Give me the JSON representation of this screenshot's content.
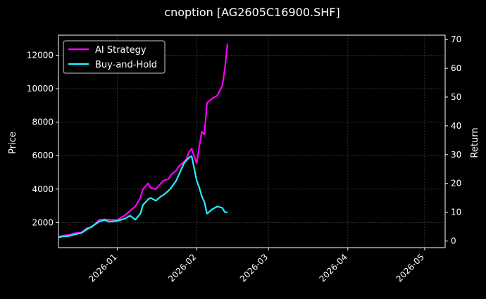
{
  "chart_data": {
    "type": "line",
    "title": "cnoption [AG2605C16900.SHF]",
    "ylabel_left": "Price",
    "ylabel_right": "Return",
    "xlim": [
      "2025-12-09",
      "2026-05-09"
    ],
    "ylim_left": [
      500,
      13200
    ],
    "ylim_right": [
      -2.3,
      71.5
    ],
    "x_ticks": [
      "2026-01-01",
      "2026-02-01",
      "2026-03-01",
      "2026-04-01",
      "2026-05-01"
    ],
    "x_tick_labels": [
      "2026-01",
      "2026-02",
      "2026-03",
      "2026-04",
      "2026-05"
    ],
    "y_ticks_left": [
      2000,
      4000,
      6000,
      8000,
      10000,
      12000
    ],
    "y_tick_labels_left": [
      "2000",
      "4000",
      "6000",
      "8000",
      "10000",
      "12000"
    ],
    "y_ticks_right": [
      0,
      10,
      20,
      30,
      40,
      50,
      60,
      70
    ],
    "y_tick_labels_right": [
      "0",
      "10",
      "20",
      "30",
      "40",
      "50",
      "60",
      "70"
    ],
    "grid": true,
    "legend_position": "top-left",
    "series": [
      {
        "name": "AI Strategy",
        "color": "#ff00ff",
        "x": [
          "2025-12-09",
          "2025-12-11",
          "2025-12-13",
          "2025-12-15",
          "2025-12-18",
          "2025-12-20",
          "2025-12-22",
          "2025-12-25",
          "2025-12-27",
          "2025-12-29",
          "2026-01-01",
          "2026-01-04",
          "2026-01-06",
          "2026-01-08",
          "2026-01-10",
          "2026-01-11",
          "2026-01-13",
          "2026-01-14",
          "2026-01-16",
          "2026-01-18",
          "2026-01-19",
          "2026-01-21",
          "2026-01-22",
          "2026-01-24",
          "2026-01-25",
          "2026-01-27",
          "2026-01-28",
          "2026-01-29",
          "2026-01-30",
          "2026-02-01",
          "2026-02-02",
          "2026-02-03",
          "2026-02-04",
          "2026-02-05",
          "2026-02-07",
          "2026-02-09",
          "2026-02-11",
          "2026-02-12",
          "2026-02-13"
        ],
        "values": [
          1.5,
          1.9,
          2.1,
          2.6,
          3.0,
          4.5,
          4.8,
          7.4,
          7.5,
          7.4,
          7.3,
          9.0,
          10.5,
          12.0,
          15.0,
          18.0,
          20.0,
          18.5,
          18.0,
          20.0,
          21.0,
          21.5,
          23.0,
          24.5,
          26.0,
          27.5,
          28.5,
          31.0,
          32.0,
          27.0,
          33.0,
          38.0,
          37.0,
          48.0,
          49.5,
          50.5,
          54.0,
          60.0,
          68.5
        ]
      },
      {
        "name": "Buy-and-Hold",
        "color": "#22eeff",
        "x": [
          "2025-12-09",
          "2025-12-11",
          "2025-12-13",
          "2025-12-15",
          "2025-12-18",
          "2025-12-20",
          "2025-12-22",
          "2025-12-25",
          "2025-12-27",
          "2025-12-29",
          "2026-01-01",
          "2026-01-04",
          "2026-01-06",
          "2026-01-08",
          "2026-01-10",
          "2026-01-11",
          "2026-01-13",
          "2026-01-14",
          "2026-01-16",
          "2026-01-18",
          "2026-01-19",
          "2026-01-21",
          "2026-01-22",
          "2026-01-24",
          "2026-01-25",
          "2026-01-27",
          "2026-01-28",
          "2026-01-29",
          "2026-01-30",
          "2026-02-01",
          "2026-02-02",
          "2026-02-03",
          "2026-02-04",
          "2026-02-05",
          "2026-02-07",
          "2026-02-09",
          "2026-02-11",
          "2026-02-12",
          "2026-02-13"
        ],
        "values": [
          1.3,
          1.6,
          1.7,
          2.2,
          2.8,
          4.0,
          5.0,
          6.8,
          7.3,
          6.7,
          7.0,
          7.8,
          8.8,
          7.4,
          9.5,
          12.5,
          14.5,
          15.0,
          14.0,
          15.5,
          16.0,
          17.5,
          18.5,
          21.0,
          23.0,
          27.0,
          28.0,
          29.0,
          29.5,
          21.0,
          18.5,
          15.5,
          13.5,
          9.5,
          11.0,
          12.0,
          11.5,
          10.0,
          10.0
        ]
      }
    ]
  }
}
